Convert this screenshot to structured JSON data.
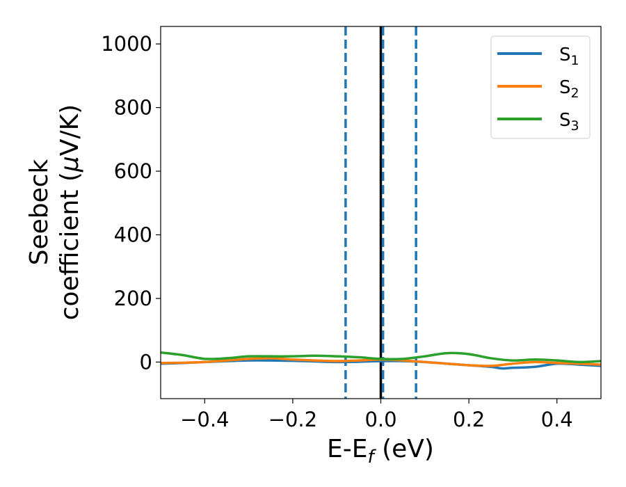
{
  "chart_data": {
    "type": "line",
    "xlabel": "E-E",
    "xlabel_sub": "f",
    "xlabel_unit": " (eV)",
    "ylabel_line1": "Seebeck",
    "ylabel_line2": "coefficient  (",
    "ylabel_mu": "μ",
    "ylabel_unit": "V/K)",
    "xlim": [
      -0.5,
      0.5
    ],
    "ylim": [
      -115,
      1055
    ],
    "xticks": [
      -0.4,
      -0.2,
      0.0,
      0.2,
      0.4
    ],
    "xtick_labels": [
      "−0.4",
      "−0.2",
      "0.0",
      "0.2",
      "0.4"
    ],
    "yticks": [
      0,
      200,
      400,
      600,
      800,
      1000
    ],
    "ytick_labels": [
      "0",
      "200",
      "400",
      "600",
      "800",
      "1000"
    ],
    "legend_position": "top-right",
    "grid": false,
    "vlines": [
      {
        "x": -0.08,
        "style": "dashed",
        "color": "#1f77b4"
      },
      {
        "x": 0.0,
        "style": "solid",
        "color": "#000000"
      },
      {
        "x": 0.005,
        "style": "dashed",
        "color": "#1f77b4"
      },
      {
        "x": 0.08,
        "style": "dashed",
        "color": "#1f77b4"
      }
    ],
    "series": [
      {
        "name": "S",
        "name_sub": "1",
        "color": "#1f77b4",
        "x": [
          -0.5,
          -0.45,
          -0.4,
          -0.35,
          -0.3,
          -0.25,
          -0.2,
          -0.15,
          -0.1,
          -0.05,
          0.0,
          0.05,
          0.1,
          0.15,
          0.2,
          0.25,
          0.275,
          0.3,
          0.35,
          0.4,
          0.45,
          0.5
        ],
        "y": [
          -5,
          -3,
          0,
          3,
          5,
          5,
          4,
          2,
          0,
          1,
          3,
          3,
          0,
          -5,
          -10,
          -15,
          -20,
          -18,
          -15,
          -5,
          -8,
          -12
        ]
      },
      {
        "name": "S",
        "name_sub": "2",
        "color": "#ff7f0e",
        "x": [
          -0.5,
          -0.45,
          -0.4,
          -0.35,
          -0.3,
          -0.25,
          -0.2,
          -0.15,
          -0.1,
          -0.05,
          0.0,
          0.05,
          0.1,
          0.15,
          0.2,
          0.25,
          0.3,
          0.35,
          0.4,
          0.45,
          0.5
        ],
        "y": [
          -3,
          -2,
          0,
          5,
          10,
          12,
          8,
          5,
          3,
          5,
          8,
          5,
          0,
          -5,
          -10,
          -12,
          -5,
          0,
          -3,
          -5,
          -8
        ]
      },
      {
        "name": "S",
        "name_sub": "3",
        "color": "#2ca02c",
        "x": [
          -0.5,
          -0.45,
          -0.4,
          -0.35,
          -0.3,
          -0.25,
          -0.2,
          -0.15,
          -0.1,
          -0.05,
          0.0,
          0.05,
          0.1,
          0.15,
          0.2,
          0.25,
          0.3,
          0.35,
          0.4,
          0.45,
          0.5
        ],
        "y": [
          30,
          22,
          10,
          12,
          18,
          18,
          18,
          20,
          18,
          15,
          10,
          10,
          18,
          28,
          25,
          12,
          5,
          8,
          5,
          0,
          3
        ]
      }
    ]
  }
}
